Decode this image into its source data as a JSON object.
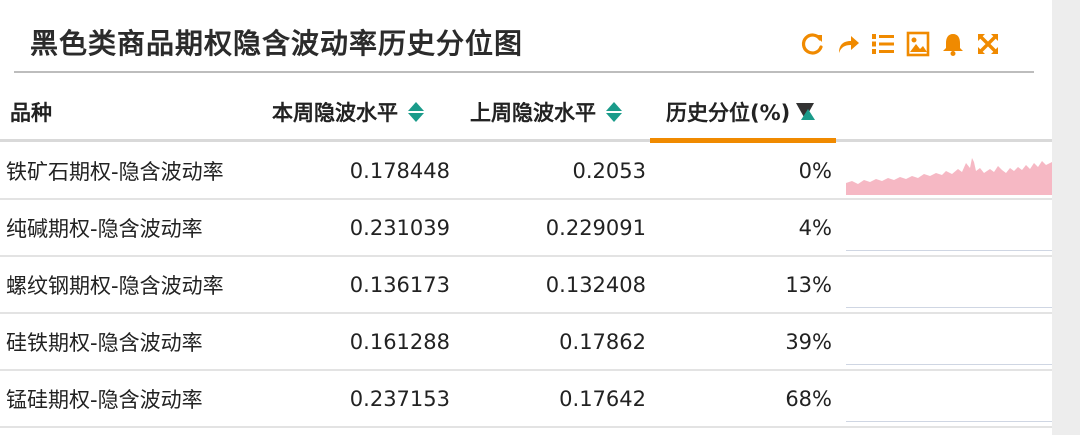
{
  "title": "黑色类商品期权隐含波动率历史分位图",
  "toolbar": {
    "icons": [
      "refresh-icon",
      "share-icon",
      "list-icon",
      "image-icon",
      "bell-icon",
      "fullscreen-icon"
    ],
    "color": "#f08a00"
  },
  "columns": {
    "variety": "品种",
    "this_week": "本周隐波水平",
    "last_week": "上周隐波水平",
    "percentile": "历史分位(%)"
  },
  "rows": [
    {
      "name": "铁矿石期权-隐含波动率",
      "this_week": "0.178448",
      "last_week": "0.2053",
      "percentile": "0%"
    },
    {
      "name": "纯碱期权-隐含波动率",
      "this_week": "0.231039",
      "last_week": "0.229091",
      "percentile": "4%"
    },
    {
      "name": "螺纹钢期权-隐含波动率",
      "this_week": "0.136173",
      "last_week": "0.132408",
      "percentile": "13%"
    },
    {
      "name": "硅铁期权-隐含波动率",
      "this_week": "0.161288",
      "last_week": "0.17862",
      "percentile": "39%"
    },
    {
      "name": "锰硅期权-隐含波动率",
      "this_week": "0.237153",
      "last_week": "0.17642",
      "percentile": "68%"
    }
  ],
  "colors": {
    "accent": "#f08a00",
    "sort_teal": "#1a9b8a",
    "sparkline_fill": "#f6b8c4"
  }
}
